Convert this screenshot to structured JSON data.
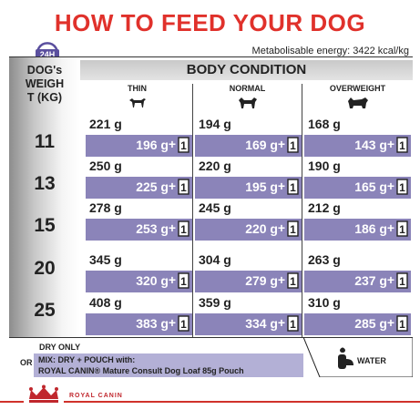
{
  "title": "HOW TO FEED YOUR DOG",
  "clock_label": "24H",
  "energy": "Metabolisable energy: 3422 kcal/kg",
  "weight_header": [
    "DOG's",
    "WEIGH",
    "T (KG)"
  ],
  "body_condition": "BODY CONDITION",
  "columns": [
    "THIN",
    "NORMAL",
    "OVERWEIGHT"
  ],
  "rows": [
    {
      "weight": "11",
      "cells": [
        [
          "221 g",
          "196 g"
        ],
        [
          "194 g",
          "169 g"
        ],
        [
          "168 g",
          "143 g"
        ]
      ]
    },
    {
      "weight": "13",
      "cells": [
        [
          "250 g",
          "225 g"
        ],
        [
          "220 g",
          "195 g"
        ],
        [
          "190 g",
          "165 g"
        ]
      ]
    },
    {
      "weight": "15",
      "cells": [
        [
          "278 g",
          "253 g"
        ],
        [
          "245 g",
          "220 g"
        ],
        [
          "212 g",
          "186 g"
        ]
      ]
    },
    {
      "weight": "20",
      "cells": [
        [
          "345 g",
          "320 g"
        ],
        [
          "304 g",
          "279 g"
        ],
        [
          "263 g",
          "237 g"
        ]
      ]
    },
    {
      "weight": "25",
      "cells": [
        [
          "408 g",
          "383 g"
        ],
        [
          "359 g",
          "334 g"
        ],
        [
          "310 g",
          "285 g"
        ]
      ]
    }
  ],
  "plus": "+",
  "pouch_count": "1",
  "legend": {
    "dry_only": "DRY ONLY",
    "or": "OR",
    "mix_line1": "MIX: DRY + POUCH with:",
    "mix_line2": "ROYAL CANIN® Mature Consult Dog Loaf 85g Pouch",
    "water": "WATER"
  },
  "brand": "ROYAL CANIN",
  "colors": {
    "title_red": "#e0312b",
    "mix_purple": "#8b84b9",
    "mix_light": "#b3b0d6"
  }
}
